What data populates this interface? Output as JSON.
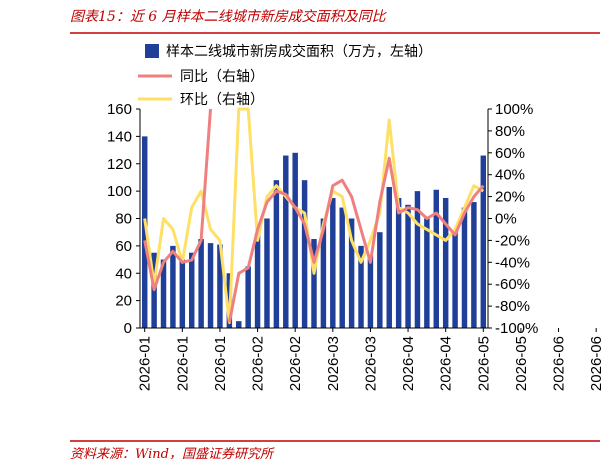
{
  "figure": {
    "title": "图表15：近 6 月样本二线城市新房成交面积及同比",
    "source": "资料来源：Wind，国盛证券研究所"
  },
  "colors": {
    "accent": "#c00000",
    "bar": "#1f3f99",
    "yoy": "#f08080",
    "mom": "#ffe066"
  },
  "chart_data": {
    "type": "bar",
    "legend_position": "top-left",
    "grid": false,
    "x_labels": [
      "2026-01",
      "2026-01",
      "2026-01",
      "2026-02",
      "2026-02",
      "2026-03",
      "2026-03",
      "2026-04",
      "2026-04",
      "2026-05",
      "2026-05",
      "2026-06",
      "2026-06"
    ],
    "x_label_indices": [
      0,
      4,
      8,
      12,
      16,
      20,
      24,
      28,
      32,
      36,
      40,
      44,
      48
    ],
    "y_left": {
      "ylim": [
        0,
        160
      ],
      "ticks": [
        0,
        20,
        40,
        60,
        80,
        100,
        120,
        140,
        160
      ]
    },
    "y_right": {
      "ylim": [
        -100,
        100
      ],
      "ticks": [
        "-100%",
        "-80%",
        "-60%",
        "-40%",
        "-20%",
        "0%",
        "20%",
        "40%",
        "60%",
        "80%",
        "100%"
      ],
      "tick_values": [
        -100,
        -80,
        -60,
        -40,
        -20,
        0,
        20,
        40,
        60,
        80,
        100
      ]
    },
    "series": [
      {
        "name": "样本二线城市新房成交面积（万方，左轴）",
        "kind": "bar",
        "axis": "left",
        "values": [
          140,
          55,
          50,
          60,
          50,
          55,
          65,
          62,
          61,
          40,
          5,
          45,
          69,
          80,
          108,
          126,
          128,
          108,
          65,
          80,
          95,
          88,
          80,
          60,
          53,
          70,
          103,
          95,
          90,
          100,
          80,
          101,
          95,
          70,
          88,
          92,
          126
        ]
      },
      {
        "name": "同比（右轴）",
        "kind": "line",
        "axis": "right",
        "values": [
          -20,
          -65,
          -40,
          -30,
          -40,
          -38,
          -20,
          100,
          null,
          -95,
          -50,
          -45,
          -10,
          15,
          25,
          22,
          10,
          -5,
          -40,
          -10,
          30,
          35,
          20,
          -10,
          -40,
          15,
          55,
          5,
          10,
          8,
          0,
          5,
          -5,
          -15,
          5,
          20,
          30
        ]
      },
      {
        "name": "环比（右轴）",
        "kind": "line",
        "axis": "right",
        "values": [
          0,
          -60,
          0,
          -10,
          -40,
          10,
          25,
          -10,
          -20,
          -95,
          100,
          100,
          -20,
          20,
          30,
          20,
          10,
          5,
          -50,
          -5,
          25,
          20,
          -20,
          -40,
          -20,
          5,
          90,
          10,
          5,
          -5,
          -10,
          -15,
          -20,
          -10,
          10,
          30,
          25
        ]
      }
    ]
  }
}
